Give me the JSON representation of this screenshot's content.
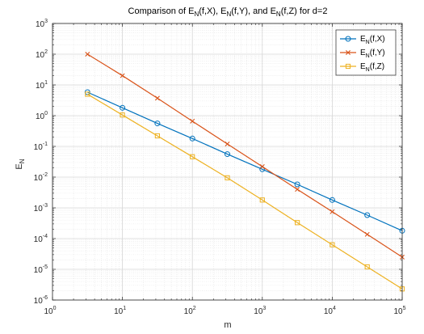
{
  "chart_data": {
    "type": "line",
    "title": {
      "text": "Comparison of E_N(f,X), E_N(f,Y), and E_N(f,Z) for d=2",
      "parts": [
        "Comparison of E",
        "N",
        "(f,X), E",
        "N",
        "(f,Y), and E",
        "N",
        "(f,Z) for d=2"
      ]
    },
    "xlabel": "m",
    "ylabel": {
      "text": "E_N",
      "main": "E",
      "sub": "N"
    },
    "xscale": "log",
    "yscale": "log",
    "xlim": [
      1,
      100000
    ],
    "ylim": [
      1e-06,
      1000
    ],
    "x_ticks": [
      {
        "base": "10",
        "exp": "0"
      },
      {
        "base": "10",
        "exp": "1"
      },
      {
        "base": "10",
        "exp": "2"
      },
      {
        "base": "10",
        "exp": "3"
      },
      {
        "base": "10",
        "exp": "4"
      },
      {
        "base": "10",
        "exp": "5"
      }
    ],
    "y_ticks": [
      {
        "base": "10",
        "exp": "-6"
      },
      {
        "base": "10",
        "exp": "-5"
      },
      {
        "base": "10",
        "exp": "-4"
      },
      {
        "base": "10",
        "exp": "-3"
      },
      {
        "base": "10",
        "exp": "-2"
      },
      {
        "base": "10",
        "exp": "-1"
      },
      {
        "base": "10",
        "exp": "0"
      },
      {
        "base": "10",
        "exp": "1"
      },
      {
        "base": "10",
        "exp": "2"
      },
      {
        "base": "10",
        "exp": "3"
      }
    ],
    "grid": true,
    "minor_grid": true,
    "legend_position": "top-right",
    "x": [
      3.1623,
      10,
      31.623,
      100,
      316.23,
      1000,
      3162.3,
      10000,
      31623,
      100000
    ],
    "series": [
      {
        "name": "E_N(f,X)",
        "label_parts": [
          "E",
          "N",
          "(f,X)"
        ],
        "color": "#0072BD",
        "marker": "circle",
        "values": [
          5.8,
          1.8,
          0.56,
          0.18,
          0.056,
          0.018,
          0.0058,
          0.0018,
          0.00058,
          0.00018
        ]
      },
      {
        "name": "E_N(f,Y)",
        "label_parts": [
          "E",
          "N",
          "(f,Y)"
        ],
        "color": "#D95319",
        "marker": "x",
        "values": [
          100,
          20,
          3.7,
          0.66,
          0.12,
          0.022,
          0.004,
          0.00075,
          0.000137,
          2.5e-05
        ]
      },
      {
        "name": "E_N(f,Z)",
        "label_parts": [
          "E",
          "N",
          "(f,Z)"
        ],
        "color": "#EDB120",
        "marker": "square",
        "values": [
          5,
          1.05,
          0.22,
          0.046,
          0.0095,
          0.0018,
          0.00033,
          6.3e-05,
          1.2e-05,
          2.3e-06
        ]
      }
    ]
  }
}
